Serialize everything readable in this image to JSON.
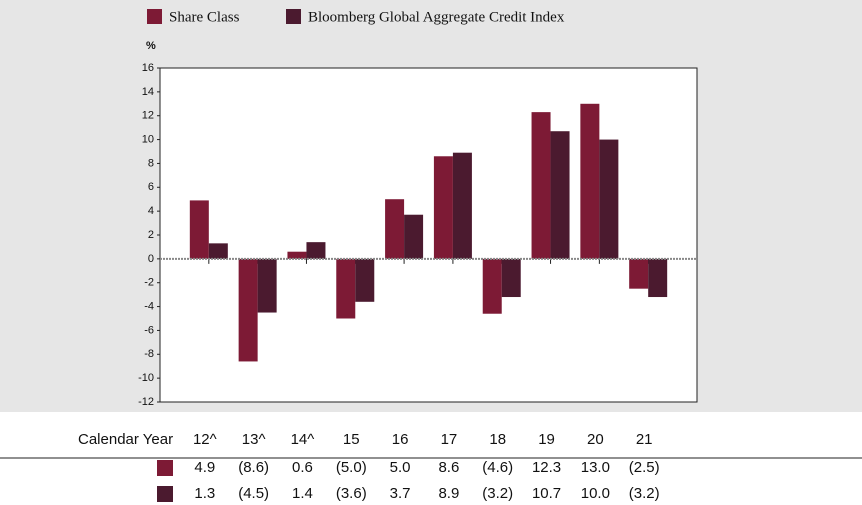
{
  "chart_data": {
    "type": "bar",
    "ylabel": "%",
    "table_header": "Calendar Year",
    "categories": [
      "12^",
      "13^",
      "14^",
      "15",
      "16",
      "17",
      "18",
      "19",
      "20",
      "21"
    ],
    "series": [
      {
        "name": "Share Class",
        "color": "#7d1a35",
        "values": [
          4.9,
          -8.6,
          0.6,
          -5.0,
          5.0,
          8.6,
          -4.6,
          12.3,
          13.0,
          -2.5
        ],
        "value_labels": [
          "4.9",
          "(8.6)",
          "0.6",
          "(5.0)",
          "5.0",
          "8.6",
          "(4.6)",
          "12.3",
          "13.0",
          "(2.5)"
        ]
      },
      {
        "name": "Bloomberg Global Aggregate Credit Index",
        "color": "#4b1a2f",
        "values": [
          1.3,
          -4.5,
          1.4,
          -3.6,
          3.7,
          8.9,
          -3.2,
          10.7,
          10.0,
          -3.2
        ],
        "value_labels": [
          "1.3",
          "(4.5)",
          "1.4",
          "(3.6)",
          "3.7",
          "8.9",
          "(3.2)",
          "10.7",
          "10.0",
          "(3.2)"
        ]
      }
    ],
    "ylim": [
      -12,
      16
    ],
    "yticks": [
      -12,
      -10,
      -8,
      -6,
      -4,
      -2,
      0,
      2,
      4,
      6,
      8,
      10,
      12,
      14,
      16
    ]
  }
}
